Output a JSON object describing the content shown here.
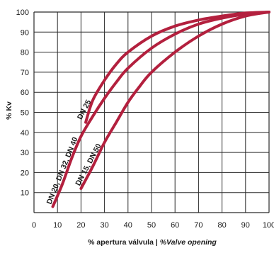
{
  "chart_data": {
    "type": "line",
    "title": "",
    "xlabel_prefix": "% apertura válvula | ",
    "xlabel_italic": "%Valve opening",
    "ylabel": "% Kv",
    "xlim": [
      0,
      100
    ],
    "ylim": [
      0,
      100
    ],
    "x_ticks": [
      "0",
      "10",
      "20",
      "30",
      "40",
      "50",
      "60",
      "70",
      "80",
      "90",
      "100"
    ],
    "y_ticks": [
      "10",
      "20",
      "30",
      "40",
      "50",
      "60",
      "70",
      "80",
      "90",
      "100"
    ],
    "grid": true,
    "line_color": "#b3203e",
    "series": [
      {
        "name": "DN 25",
        "x": [
          22,
          25,
          30,
          35,
          40,
          50,
          60,
          70,
          80,
          90,
          100
        ],
        "y": [
          45,
          56,
          66,
          74,
          80,
          88,
          93,
          96,
          98,
          99.5,
          100
        ]
      },
      {
        "name": "DN 20, DN 32, DN 40",
        "x": [
          8,
          12,
          16,
          20,
          25,
          30,
          35,
          40,
          50,
          60,
          70,
          80,
          90,
          100
        ],
        "y": [
          3,
          14,
          27,
          38,
          48,
          57,
          65,
          72,
          82,
          89,
          94,
          97,
          99,
          100
        ]
      },
      {
        "name": "DN 15, DN 50",
        "x": [
          20,
          25,
          30,
          35,
          40,
          45,
          50,
          60,
          70,
          80,
          90,
          100
        ],
        "y": [
          12,
          23,
          35,
          45,
          55,
          63,
          70,
          80,
          88,
          94,
          98,
          100
        ]
      }
    ]
  }
}
